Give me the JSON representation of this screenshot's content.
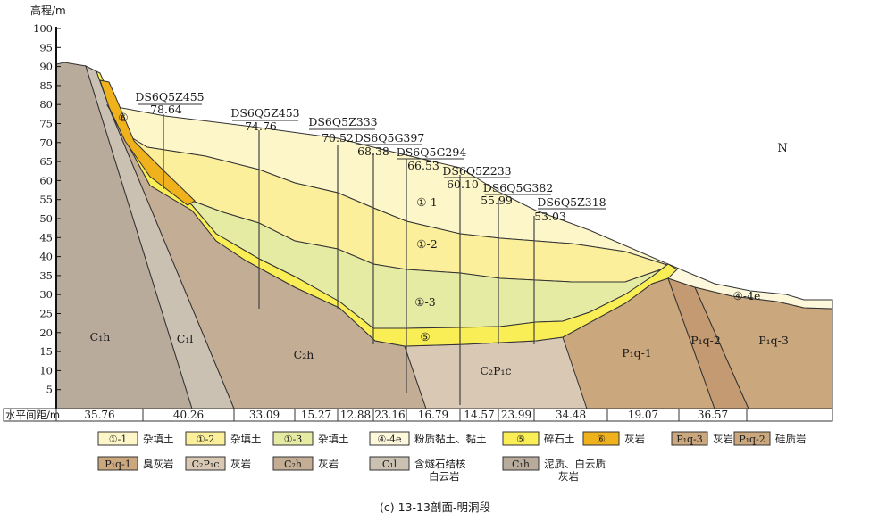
{
  "axis_title": "高程/m",
  "y_ticks": [
    "5",
    "10",
    "15",
    "20",
    "25",
    "30",
    "35",
    "40",
    "45",
    "50",
    "55",
    "60",
    "65",
    "70",
    "75",
    "80",
    "85",
    "90",
    "95",
    "100"
  ],
  "distance_label": "水平间距/m",
  "distances": [
    "35.76",
    "40.26",
    "33.09",
    "15.27",
    "12.88",
    "23.16",
    "16.79",
    "14.57",
    "23.99",
    "34.48",
    "19.07",
    "36.57"
  ],
  "direction": "N",
  "boreholes": [
    {
      "name": "DS6Q5Z455",
      "elev": "78.64"
    },
    {
      "name": "DS6Q5Z453",
      "elev": "74.76"
    },
    {
      "name": "DS6Q5Z333",
      "elev": "70.52"
    },
    {
      "name": "DS6Q5G397",
      "elev": "68.38"
    },
    {
      "name": "DS6Q5G294",
      "elev": "66.53"
    },
    {
      "name": "DS6Q5Z233",
      "elev": "60.10"
    },
    {
      "name": "DS6Q5G382",
      "elev": "55.99"
    },
    {
      "name": "DS6Q5Z318",
      "elev": "53.03"
    }
  ],
  "in_section_labels": {
    "l11": "①-1",
    "l12": "①-2",
    "l13": "①-3",
    "l5": "⑤",
    "l6": "⑥",
    "l44e": "④-4e",
    "c1h": "C₁h",
    "c1l": "C₁l",
    "c2h": "C₂h",
    "c2p1c": "C₂P₁c",
    "p1q1": "P₁q-1",
    "p1q2": "P₁q-2",
    "p1q3": "P₁q-3"
  },
  "legend": [
    {
      "code": "①-1",
      "desc": "杂填土",
      "color": "#fdf6c8"
    },
    {
      "code": "①-2",
      "desc": "杂填土",
      "color": "#fbef9c"
    },
    {
      "code": "①-3",
      "desc": "杂填土",
      "color": "#e6eba4"
    },
    {
      "code": "④-4e",
      "desc": "粉质黏土、黏土",
      "color": "#fdf8dc"
    },
    {
      "code": "⑤",
      "desc": "碎石土",
      "color": "#f9ee55"
    },
    {
      "code": "⑥",
      "desc": "灰岩",
      "color": "#f0b21c"
    },
    {
      "code": "P₁q-3",
      "desc": "灰岩",
      "color": "#cba77e"
    },
    {
      "code": "P₁q-2",
      "desc": "硅质岩",
      "color": "#cba77e"
    },
    {
      "code": "P₁q-1",
      "desc": "臭灰岩",
      "color": "#cba77e"
    },
    {
      "code": "C₂P₁c",
      "desc": "灰岩",
      "color": "#d8c8b4"
    },
    {
      "code": "C₂h",
      "desc": "灰岩",
      "color": "#c3ad95"
    },
    {
      "code": "C₁l",
      "desc": "含燧石结核",
      "desc2": "白云岩",
      "color": "#cbc1b3"
    },
    {
      "code": "C₁h",
      "desc": "泥质、白云质",
      "desc2": "灰岩",
      "color": "#b8ab9c"
    }
  ],
  "caption": "(c) 13-13剖面-明洞段"
}
